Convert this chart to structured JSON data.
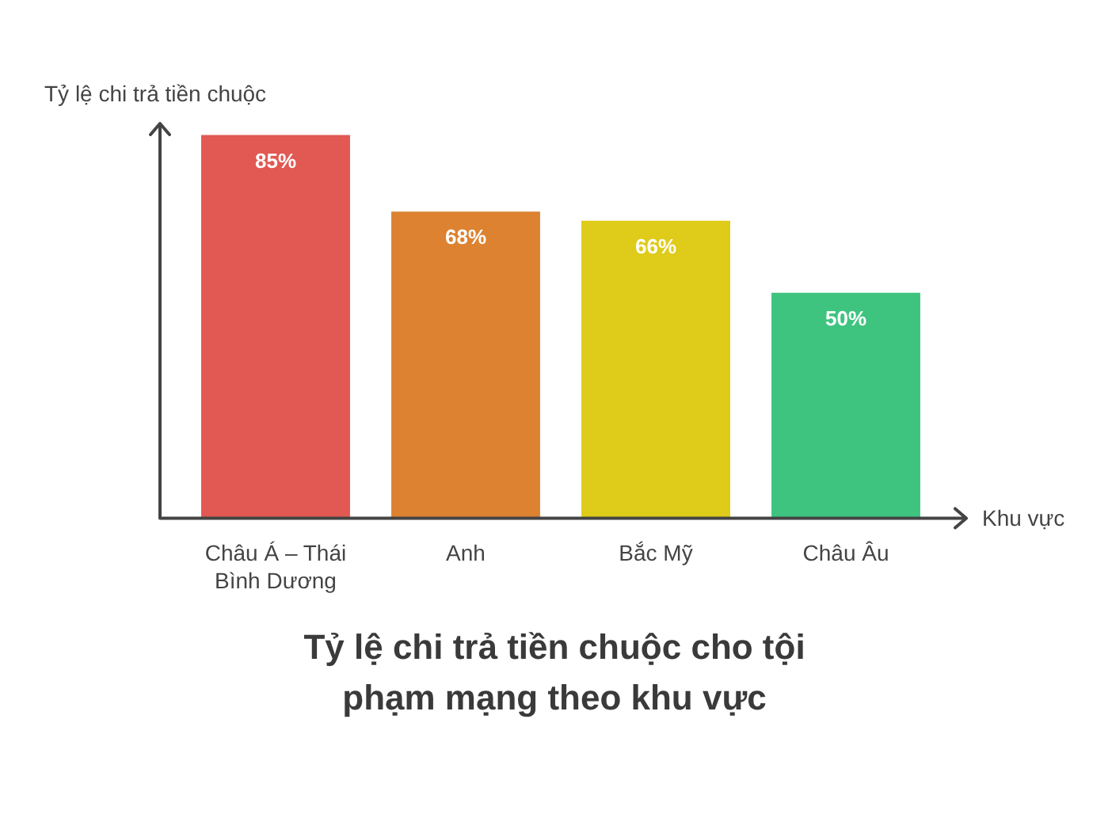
{
  "chart_data": {
    "type": "bar",
    "title": "Tỷ lệ chi trả tiền chuộc cho tội phạm mạng theo khu vực",
    "xlabel": "Khu vực",
    "ylabel": "Tỷ lệ chi trả tiền chuộc",
    "categories": [
      "Châu Á – Thái Bình Dương",
      "Anh",
      "Bắc Mỹ",
      "Châu Âu"
    ],
    "values": [
      85,
      68,
      66,
      50
    ],
    "colors": [
      "#e25852",
      "#dc8230",
      "#dfcb19",
      "#3ec47f"
    ],
    "value_labels": [
      "85%",
      "68%",
      "66%",
      "50%"
    ],
    "tick_labels": "x"
  }
}
